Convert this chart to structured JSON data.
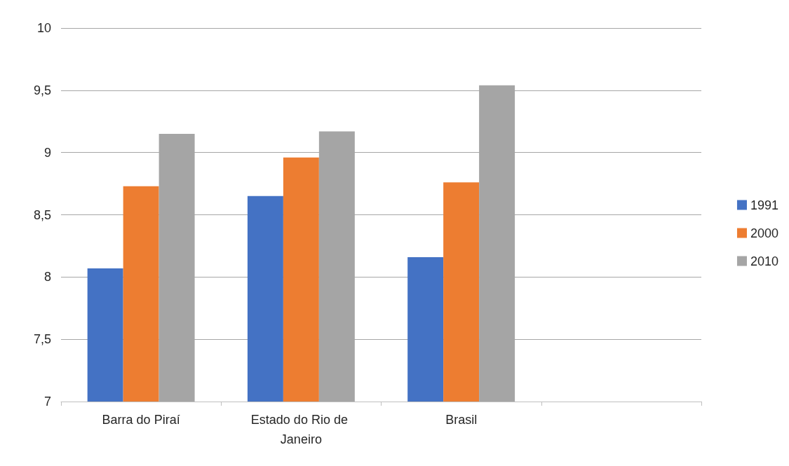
{
  "chart_data": {
    "type": "bar",
    "categories": [
      "Barra do Piraí",
      "Estado do Rio de Janeiro",
      "Brasil",
      null
    ],
    "series": [
      {
        "name": "1991",
        "color": "#4472c4",
        "values": [
          8.07,
          8.65,
          8.16,
          null
        ]
      },
      {
        "name": "2000",
        "color": "#ed7d31",
        "values": [
          8.73,
          8.96,
          8.76,
          null
        ]
      },
      {
        "name": "2010",
        "color": "#a5a5a5",
        "values": [
          9.15,
          9.17,
          9.54,
          null
        ]
      }
    ],
    "ylim": [
      7,
      10
    ],
    "yticks": [
      7,
      {
        "value": 7.5,
        "label": "7,5"
      },
      8,
      {
        "value": 8.5,
        "label": "8,5"
      },
      9,
      {
        "value": 9.5,
        "label": "9,5"
      },
      10
    ],
    "grid": "y",
    "legend": "right"
  }
}
